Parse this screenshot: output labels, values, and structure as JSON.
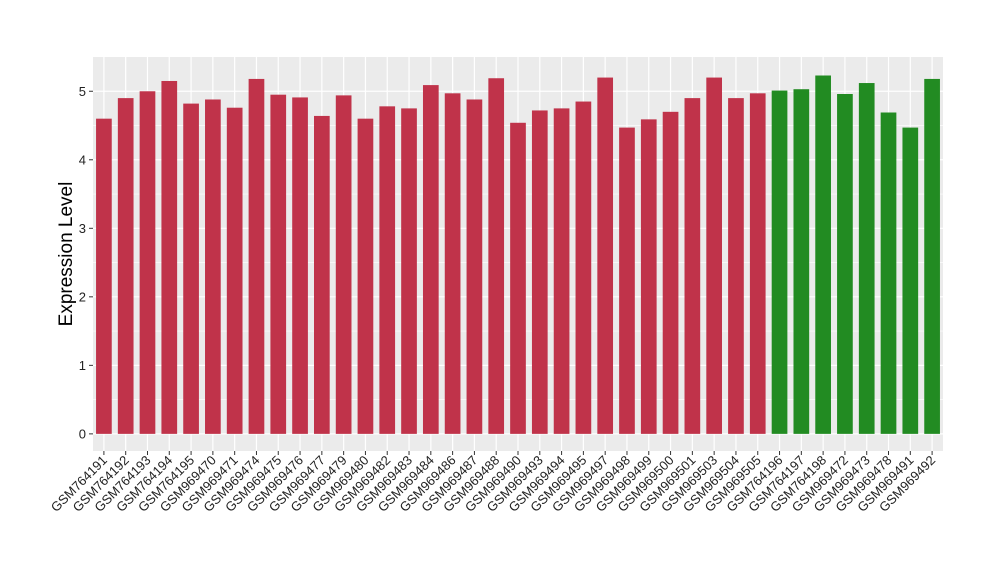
{
  "chart_data": {
    "type": "bar",
    "ylabel": "Expression Level",
    "xlabel": "",
    "ylim": [
      -0.25,
      5.5
    ],
    "yticks": [
      0,
      1,
      2,
      3,
      4,
      5
    ],
    "grid": true,
    "categories": [
      "GSM764191",
      "GSM764192",
      "GSM764193",
      "GSM764194",
      "GSM764195",
      "GSM969470",
      "GSM969471",
      "GSM969474",
      "GSM969475",
      "GSM969476",
      "GSM969477",
      "GSM969479",
      "GSM969480",
      "GSM969482",
      "GSM969483",
      "GSM969484",
      "GSM969486",
      "GSM969487",
      "GSM969488",
      "GSM969490",
      "GSM969493",
      "GSM969494",
      "GSM969495",
      "GSM969497",
      "GSM969498",
      "GSM969499",
      "GSM969500",
      "GSM969501",
      "GSM969503",
      "GSM969504",
      "GSM969505",
      "GSM764196",
      "GSM764197",
      "GSM764198",
      "GSM969472",
      "GSM969473",
      "GSM969478",
      "GSM969491",
      "GSM969492"
    ],
    "values": [
      4.6,
      4.9,
      5.0,
      5.15,
      4.82,
      4.88,
      4.76,
      5.18,
      4.95,
      4.91,
      4.64,
      4.94,
      4.6,
      4.78,
      4.75,
      5.09,
      4.97,
      4.88,
      5.19,
      4.54,
      4.72,
      4.75,
      4.85,
      5.2,
      4.47,
      4.59,
      4.7,
      4.9,
      5.2,
      4.9,
      4.97,
      5.01,
      5.03,
      5.23,
      4.96,
      5.12,
      4.69,
      4.47,
      5.18
    ],
    "bar_colors": [
      "#c0334a",
      "#c0334a",
      "#c0334a",
      "#c0334a",
      "#c0334a",
      "#c0334a",
      "#c0334a",
      "#c0334a",
      "#c0334a",
      "#c0334a",
      "#c0334a",
      "#c0334a",
      "#c0334a",
      "#c0334a",
      "#c0334a",
      "#c0334a",
      "#c0334a",
      "#c0334a",
      "#c0334a",
      "#c0334a",
      "#c0334a",
      "#c0334a",
      "#c0334a",
      "#c0334a",
      "#c0334a",
      "#c0334a",
      "#c0334a",
      "#c0334a",
      "#c0334a",
      "#c0334a",
      "#c0334a",
      "#228b22",
      "#228b22",
      "#228b22",
      "#228b22",
      "#228b22",
      "#228b22",
      "#228b22",
      "#228b22"
    ],
    "colors": {
      "panel_background": "#ebebeb",
      "grid": "#ffffff",
      "tick": "#333333"
    }
  }
}
